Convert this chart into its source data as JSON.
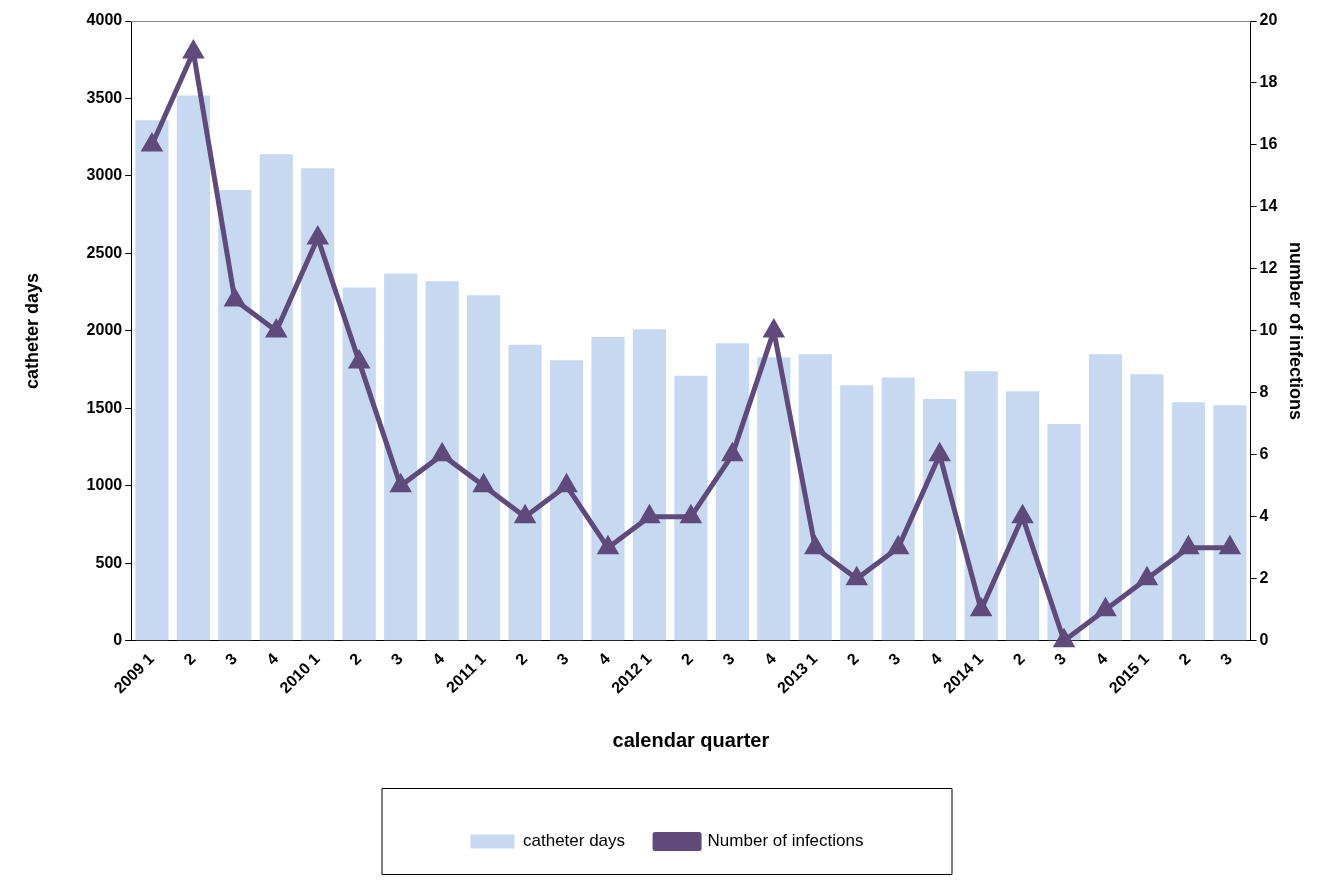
{
  "chart_data": {
    "type": "bar",
    "xlabel": "calendar quarter",
    "ylabel": "catheter days",
    "y2label": "number of infections",
    "categories": [
      "2009 1",
      "2",
      "3",
      "4",
      "2010 1",
      "2",
      "3",
      "4",
      "2011 1",
      "2",
      "3",
      "4",
      "2012 1",
      "2",
      "3",
      "4",
      "2013 1",
      "2",
      "3",
      "4",
      "2014 1",
      "2",
      "3",
      "4",
      "2015 1",
      "2",
      "3"
    ],
    "series": [
      {
        "name": "catheter days",
        "color": "#c6d9f1",
        "values": [
          3360,
          3520,
          2910,
          3140,
          3050,
          2280,
          2370,
          2320,
          2230,
          1910,
          1810,
          1960,
          2010,
          1710,
          1920,
          1830,
          1850,
          1650,
          1700,
          1560,
          1740,
          1610,
          1400,
          1850,
          1720,
          1540,
          1520
        ]
      },
      {
        "name": "Number of infections",
        "type": "line",
        "axis": "y2",
        "color": "#604a7b",
        "marker": "triangle",
        "values": [
          16,
          19,
          11,
          10,
          13,
          9,
          5,
          6,
          5,
          4,
          5,
          3,
          4,
          4,
          6,
          10,
          3,
          2,
          3,
          6,
          1,
          4,
          0,
          1,
          2,
          3,
          3
        ]
      }
    ],
    "ylim": [
      0,
      4000
    ],
    "yticks": [
      0,
      500,
      1000,
      1500,
      2000,
      2500,
      3000,
      3500,
      4000
    ],
    "y2lim": [
      0,
      20
    ],
    "y2ticks": [
      0,
      2,
      4,
      6,
      8,
      10,
      12,
      14,
      16,
      18,
      20
    ],
    "grid": false,
    "legend": "bottom"
  }
}
